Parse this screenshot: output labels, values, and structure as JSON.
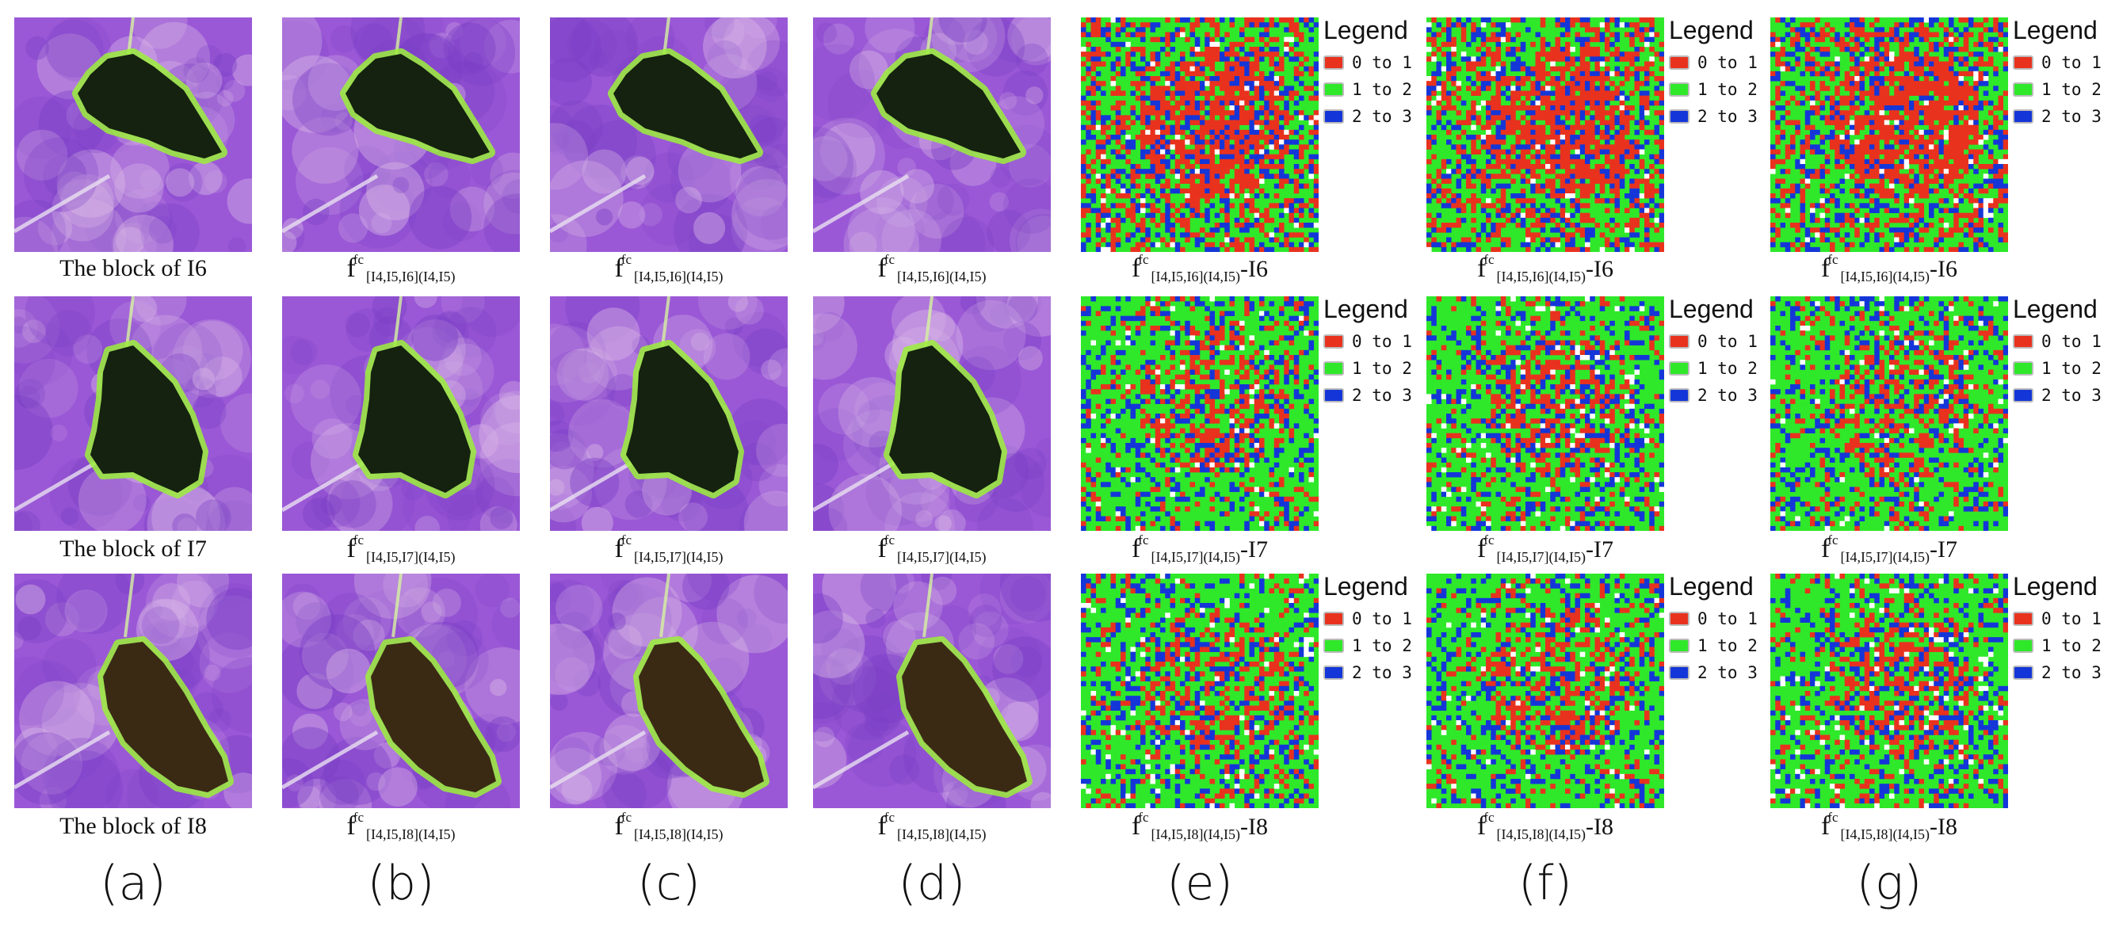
{
  "rows": [
    {
      "id": "I6",
      "block_caption": "The block of I6",
      "diff_suffix": "-I6"
    },
    {
      "id": "I7",
      "block_caption": "The block of I7",
      "diff_suffix": "-I7"
    },
    {
      "id": "I8",
      "block_caption": "The block of I8",
      "diff_suffix": "-I8"
    }
  ],
  "columns": [
    {
      "letter": "(a)",
      "kind": "satellite-block"
    },
    {
      "letter": "(b)",
      "kind": "fused-prediction",
      "func": "f",
      "superscript": "fc",
      "subscript": "[I4,I5,I6](I4,I5)"
    },
    {
      "letter": "(c)",
      "kind": "fused-prediction",
      "func": "f",
      "superscript": "fc",
      "subscript": "[I4,I5,I6](I4,I5)"
    },
    {
      "letter": "(d)",
      "kind": "fused-prediction",
      "func": "f",
      "superscript": "fc",
      "subscript": "[I4,I5,I6](I4,I5)"
    },
    {
      "letter": "(e)",
      "kind": "difference-map",
      "func": "f",
      "superscript": "fc",
      "subscript": "[I4,I5,I6](I4,I5)"
    },
    {
      "letter": "(f)",
      "kind": "difference-map",
      "func": "f",
      "superscript": "fc",
      "subscript": "[I4,I5,I6](I4,I5)"
    },
    {
      "letter": "(g)",
      "kind": "difference-map",
      "func": "f",
      "superscript": "fc",
      "subscript": "[I4,I5,I6](I4,I5)"
    }
  ],
  "row_subscripts": {
    "I6": "[I4,I5,I6](I4,I5)",
    "I7": "[I4,I5,I7](I4,I5)",
    "I8": "[I4,I5,I8](I4,I5)"
  },
  "legend": {
    "title": "Legend",
    "items": [
      {
        "label": "0 to 1",
        "color": "#e8321e"
      },
      {
        "label": "1 to 2",
        "color": "#2fe82a"
      },
      {
        "label": "2 to 3",
        "color": "#1436d8"
      }
    ]
  },
  "palette": {
    "background": "#9a58d6",
    "background_light": "#d9b7e6",
    "lake_dark": "#14220f",
    "lake_brown": "#3a2a14",
    "shore_green": "#9cf03a"
  }
}
